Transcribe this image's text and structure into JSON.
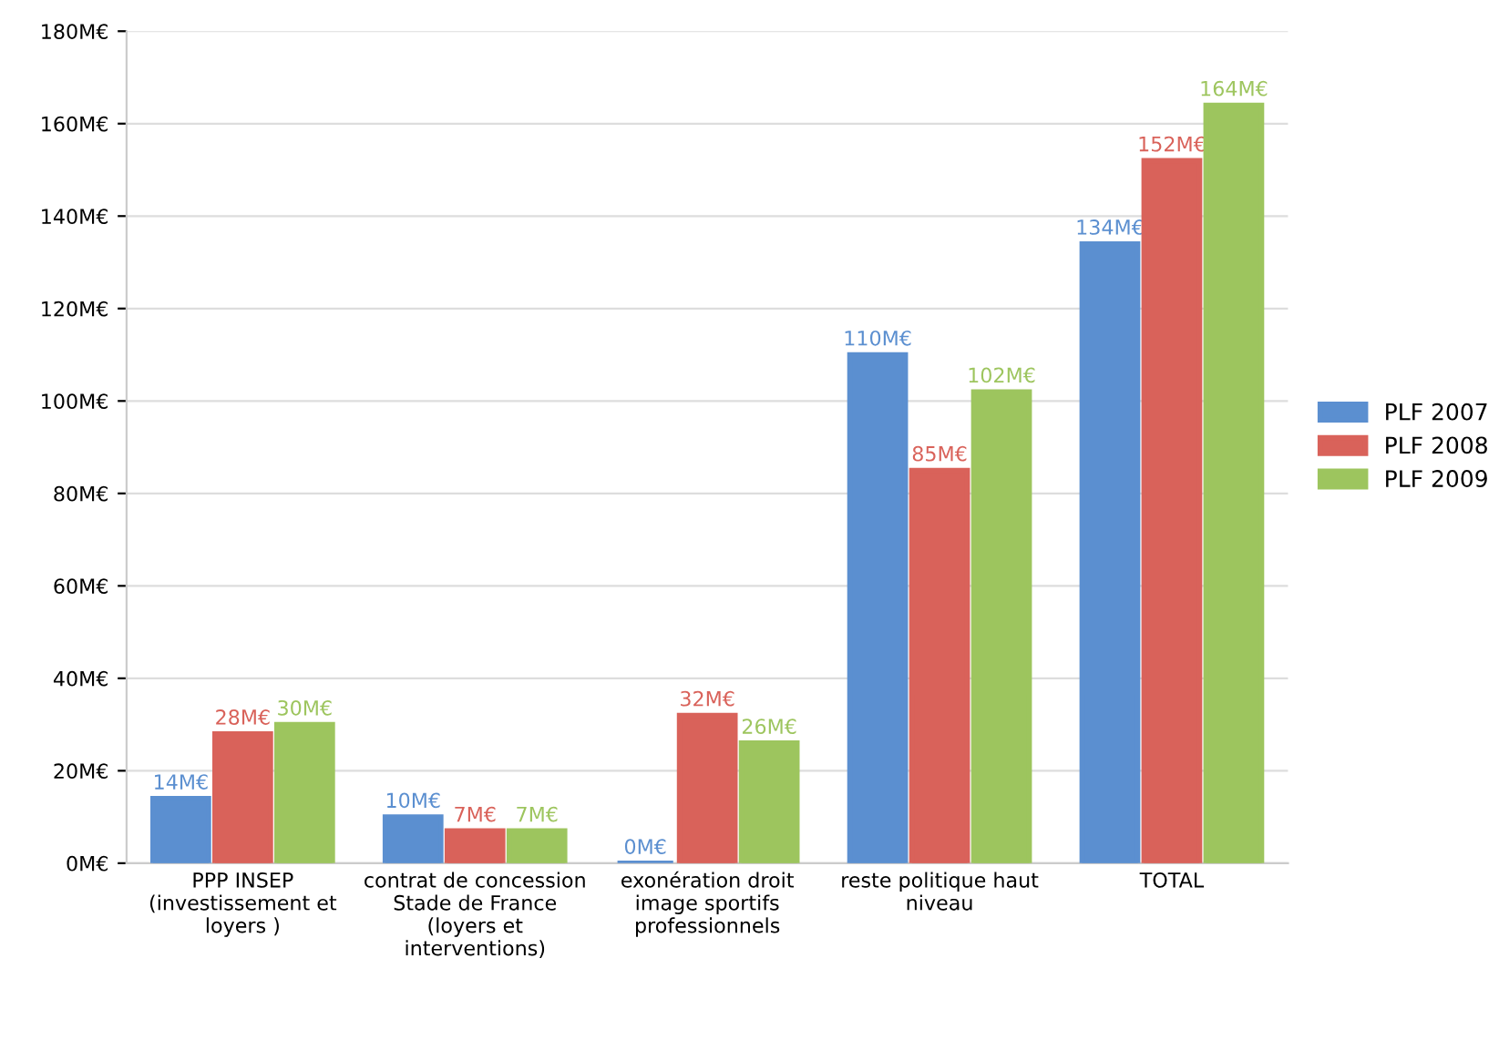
{
  "chart_data": {
    "type": "bar",
    "categories": [
      "PPP INSEP\n(investissement et\nloyers )",
      "contrat de concession\nStade de France\n(loyers et\ninterventions)",
      "exonération droit\nimage sportifs\nprofessionnels",
      "reste politique haut\nniveau",
      "TOTAL"
    ],
    "series": [
      {
        "name": "PLF 2007",
        "color": "#5b8fd0",
        "values": [
          14,
          10,
          0,
          110,
          134
        ],
        "value_labels": [
          "14M€",
          "10M€",
          "0M€",
          "110M€",
          "134M€"
        ]
      },
      {
        "name": "PLF 2008",
        "color": "#d9625a",
        "values": [
          28,
          7,
          32,
          85,
          152
        ],
        "value_labels": [
          "28M€",
          "7M€",
          "32M€",
          "85M€",
          "152M€"
        ]
      },
      {
        "name": "PLF 2009",
        "color": "#9dc55e",
        "values": [
          30,
          7,
          26,
          102,
          164
        ],
        "value_labels": [
          "30M€",
          "7M€",
          "26M€",
          "102M€",
          "164M€"
        ]
      }
    ],
    "ylim": [
      0,
      180
    ],
    "yticks": [
      {
        "value": 0,
        "label": "0M€"
      },
      {
        "value": 20,
        "label": "20M€"
      },
      {
        "value": 40,
        "label": "40M€"
      },
      {
        "value": 60,
        "label": "60M€"
      },
      {
        "value": 80,
        "label": "80M€"
      },
      {
        "value": 100,
        "label": "100M€"
      },
      {
        "value": 120,
        "label": "120M€"
      },
      {
        "value": 140,
        "label": "140M€"
      },
      {
        "value": 160,
        "label": "160M€"
      },
      {
        "value": 180,
        "label": "180M€"
      }
    ],
    "grid": "y",
    "legend": "right"
  }
}
